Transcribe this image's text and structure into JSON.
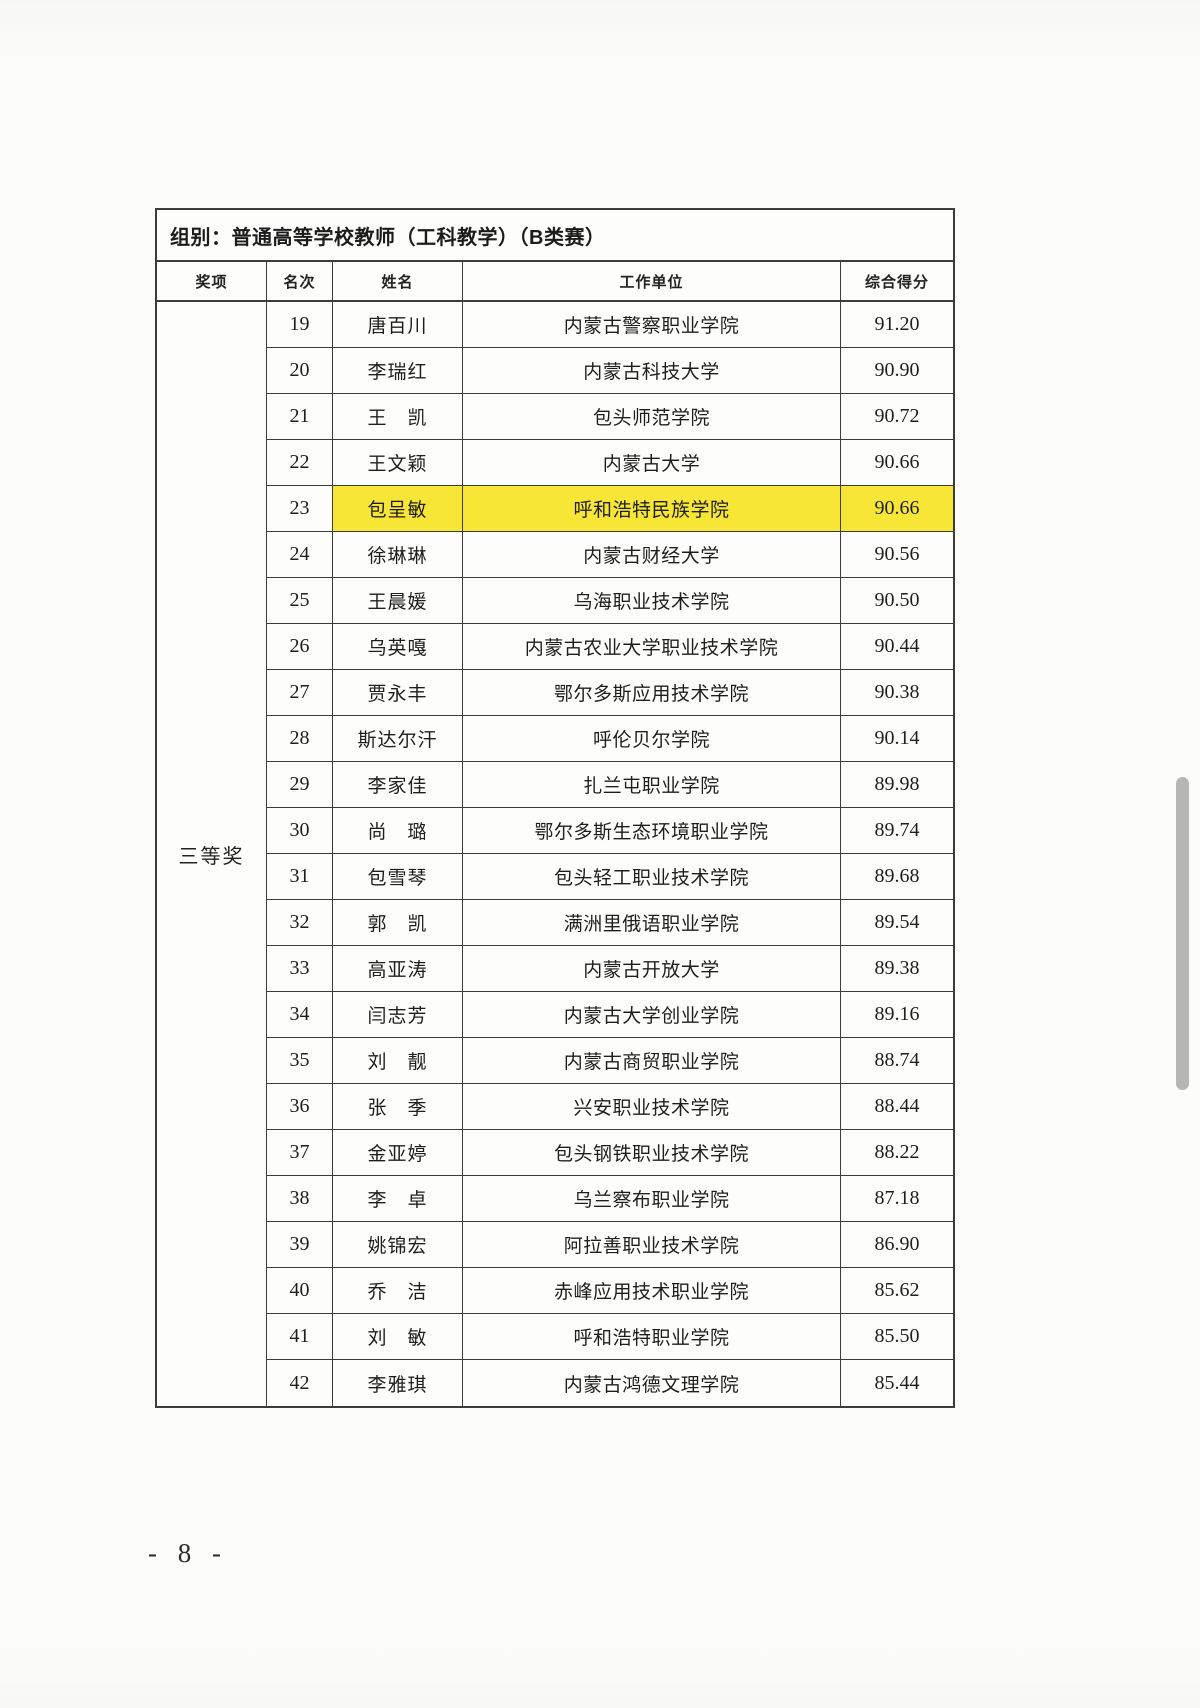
{
  "page": {
    "page_number": "- 8 -"
  },
  "table": {
    "group_title": "组别：普通高等学校教师（工科教学）（B类赛）",
    "columns": [
      "奖项",
      "名次",
      "姓名",
      "工作单位",
      "综合得分"
    ],
    "award_label": "三等奖",
    "highlight_color": "#f7e636",
    "rows": [
      {
        "rank": "19",
        "name": "唐百川",
        "unit": "内蒙古警察职业学院",
        "score": "91.20",
        "highlighted": false
      },
      {
        "rank": "20",
        "name": "李瑞红",
        "unit": "内蒙古科技大学",
        "score": "90.90",
        "highlighted": false
      },
      {
        "rank": "21",
        "name": "王　凯",
        "unit": "包头师范学院",
        "score": "90.72",
        "highlighted": false
      },
      {
        "rank": "22",
        "name": "王文颖",
        "unit": "内蒙古大学",
        "score": "90.66",
        "highlighted": false
      },
      {
        "rank": "23",
        "name": "包呈敏",
        "unit": "呼和浩特民族学院",
        "score": "90.66",
        "highlighted": true
      },
      {
        "rank": "24",
        "name": "徐琳琳",
        "unit": "内蒙古财经大学",
        "score": "90.56",
        "highlighted": false
      },
      {
        "rank": "25",
        "name": "王晨媛",
        "unit": "乌海职业技术学院",
        "score": "90.50",
        "highlighted": false
      },
      {
        "rank": "26",
        "name": "乌英嘎",
        "unit": "内蒙古农业大学职业技术学院",
        "score": "90.44",
        "highlighted": false
      },
      {
        "rank": "27",
        "name": "贾永丰",
        "unit": "鄂尔多斯应用技术学院",
        "score": "90.38",
        "highlighted": false
      },
      {
        "rank": "28",
        "name": "斯达尔汗",
        "unit": "呼伦贝尔学院",
        "score": "90.14",
        "highlighted": false
      },
      {
        "rank": "29",
        "name": "李家佳",
        "unit": "扎兰屯职业学院",
        "score": "89.98",
        "highlighted": false
      },
      {
        "rank": "30",
        "name": "尚　璐",
        "unit": "鄂尔多斯生态环境职业学院",
        "score": "89.74",
        "highlighted": false
      },
      {
        "rank": "31",
        "name": "包雪琴",
        "unit": "包头轻工职业技术学院",
        "score": "89.68",
        "highlighted": false
      },
      {
        "rank": "32",
        "name": "郭　凯",
        "unit": "满洲里俄语职业学院",
        "score": "89.54",
        "highlighted": false
      },
      {
        "rank": "33",
        "name": "高亚涛",
        "unit": "内蒙古开放大学",
        "score": "89.38",
        "highlighted": false
      },
      {
        "rank": "34",
        "name": "闫志芳",
        "unit": "内蒙古大学创业学院",
        "score": "89.16",
        "highlighted": false
      },
      {
        "rank": "35",
        "name": "刘　靓",
        "unit": "内蒙古商贸职业学院",
        "score": "88.74",
        "highlighted": false
      },
      {
        "rank": "36",
        "name": "张　季",
        "unit": "兴安职业技术学院",
        "score": "88.44",
        "highlighted": false
      },
      {
        "rank": "37",
        "name": "金亚婷",
        "unit": "包头钢铁职业技术学院",
        "score": "88.22",
        "highlighted": false
      },
      {
        "rank": "38",
        "name": "李　卓",
        "unit": "乌兰察布职业学院",
        "score": "87.18",
        "highlighted": false
      },
      {
        "rank": "39",
        "name": "姚锦宏",
        "unit": "阿拉善职业技术学院",
        "score": "86.90",
        "highlighted": false
      },
      {
        "rank": "40",
        "name": "乔　洁",
        "unit": "赤峰应用技术职业学院",
        "score": "85.62",
        "highlighted": false
      },
      {
        "rank": "41",
        "name": "刘　敏",
        "unit": "呼和浩特职业学院",
        "score": "85.50",
        "highlighted": false
      },
      {
        "rank": "42",
        "name": "李雅琪",
        "unit": "内蒙古鸿德文理学院",
        "score": "85.44",
        "highlighted": false
      }
    ]
  }
}
